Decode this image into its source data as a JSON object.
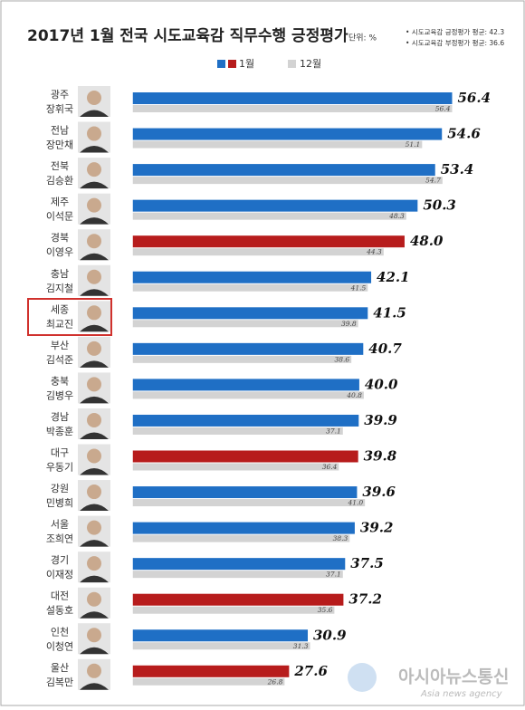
{
  "chart_data": {
    "type": "bar",
    "orientation": "horizontal",
    "title": "2017년 1월 전국 시도교육감 직무수행 긍정평가",
    "unit": "단위: %",
    "notes": [
      "• 시도교육감 긍정평가 평균: 42.3",
      "• 시도교육감 부정평가 평균: 36.6"
    ],
    "categories": [
      [
        "광주",
        "장휘국"
      ],
      [
        "전남",
        "장만채"
      ],
      [
        "전북",
        "김승환"
      ],
      [
        "제주",
        "이석문"
      ],
      [
        "경북",
        "이영우"
      ],
      [
        "충남",
        "김지철"
      ],
      [
        "세종",
        "최교진"
      ],
      [
        "부산",
        "김석준"
      ],
      [
        "충북",
        "김병우"
      ],
      [
        "경남",
        "박종훈"
      ],
      [
        "대구",
        "우동기"
      ],
      [
        "강원",
        "민병희"
      ],
      [
        "서울",
        "조희연"
      ],
      [
        "경기",
        "이재정"
      ],
      [
        "대전",
        "설동호"
      ],
      [
        "인천",
        "이청연"
      ],
      [
        "울산",
        "김복만"
      ]
    ],
    "series": [
      {
        "name": "1월",
        "colors": [
          "#1f6fc5",
          "#1f6fc5",
          "#1f6fc5",
          "#1f6fc5",
          "#b71c1c",
          "#1f6fc5",
          "#1f6fc5",
          "#1f6fc5",
          "#1f6fc5",
          "#1f6fc5",
          "#b71c1c",
          "#1f6fc5",
          "#1f6fc5",
          "#1f6fc5",
          "#b71c1c",
          "#1f6fc5",
          "#b71c1c"
        ],
        "values": [
          56.4,
          54.6,
          53.4,
          50.3,
          48.0,
          42.1,
          41.5,
          40.7,
          40.0,
          39.9,
          39.8,
          39.6,
          39.2,
          37.5,
          37.2,
          30.9,
          27.6
        ],
        "value_labels": [
          "56.4",
          "54.6",
          "53.4",
          "50.3",
          "48.0",
          "42.1",
          "41.5",
          "40.7",
          "40.0",
          "39.9",
          "39.8",
          "39.6",
          "39.2",
          "37.5",
          "37.2",
          "30.9",
          "27.6"
        ]
      },
      {
        "name": "12월",
        "color": "#d3d3d3",
        "values": [
          56.4,
          51.1,
          54.7,
          48.3,
          44.3,
          41.5,
          39.8,
          38.6,
          40.8,
          37.1,
          36.4,
          41.0,
          38.3,
          37.1,
          35.6,
          31.3,
          26.8
        ],
        "value_labels": [
          "56.4",
          "51.1",
          "54.7",
          "48.3",
          "44.3",
          "41.5",
          "39.8",
          "38.6",
          "40.8",
          "37.1",
          "36.4",
          "41.0",
          "38.3",
          "37.1",
          "35.6",
          "31.3",
          "26.8"
        ]
      }
    ],
    "xlim": [
      -3,
      60
    ],
    "watermark": [
      "아시아뉴스통신",
      "Asia news agency"
    ]
  }
}
